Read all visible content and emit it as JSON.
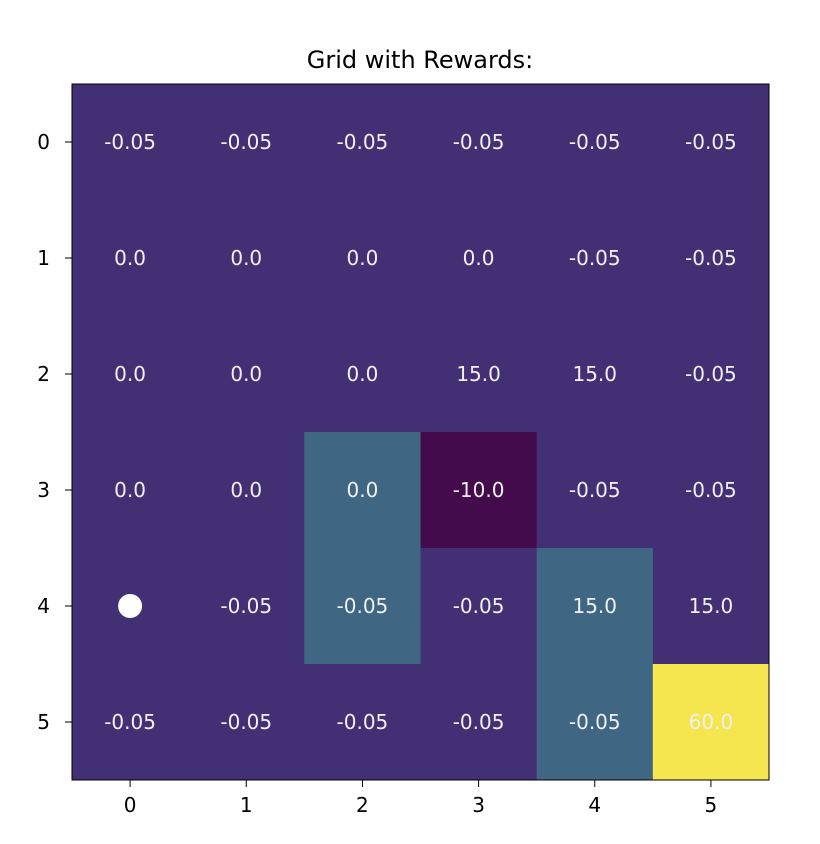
{
  "chart_data": {
    "type": "heatmap",
    "title": "Grid with Rewards:",
    "xlabel": "",
    "ylabel": "",
    "x_ticks": [
      "0",
      "1",
      "2",
      "3",
      "4",
      "5"
    ],
    "y_ticks": [
      "0",
      "1",
      "2",
      "3",
      "4",
      "5"
    ],
    "grid": false,
    "values": [
      [
        -0.05,
        -0.05,
        -0.05,
        -0.05,
        -0.05,
        -0.05
      ],
      [
        0.0,
        0.0,
        0.0,
        0.0,
        -0.05,
        -0.05
      ],
      [
        0.0,
        0.0,
        0.0,
        15.0,
        15.0,
        -0.05
      ],
      [
        0.0,
        0.0,
        0.0,
        -10.0,
        -0.05,
        -0.05
      ],
      [
        null,
        -0.05,
        -0.05,
        -0.05,
        15.0,
        15.0
      ],
      [
        -0.05,
        -0.05,
        -0.05,
        -0.05,
        -0.05,
        60.0
      ]
    ],
    "labels": [
      [
        "-0.05",
        "-0.05",
        "-0.05",
        "-0.05",
        "-0.05",
        "-0.05"
      ],
      [
        "0.0",
        "0.0",
        "0.0",
        "0.0",
        "-0.05",
        "-0.05"
      ],
      [
        "0.0",
        "0.0",
        "0.0",
        "15.0",
        "15.0",
        "-0.05"
      ],
      [
        "0.0",
        "0.0",
        "0.0",
        "-10.0",
        "-0.05",
        "-0.05"
      ],
      [
        "",
        "-0.05",
        "-0.05",
        "-0.05",
        "15.0",
        "15.0"
      ],
      [
        "-0.05",
        "-0.05",
        "-0.05",
        "-0.05",
        "-0.05",
        "60.0"
      ]
    ],
    "cell_colors": [
      [
        "#433074",
        "#433074",
        "#433074",
        "#433074",
        "#433074",
        "#433074"
      ],
      [
        "#433074",
        "#433074",
        "#433074",
        "#433074",
        "#433074",
        "#433074"
      ],
      [
        "#433074",
        "#433074",
        "#433074",
        "#433074",
        "#433074",
        "#433074"
      ],
      [
        "#433074",
        "#433074",
        "#3f6784",
        "#440b4c",
        "#433074",
        "#433074"
      ],
      [
        "#433074",
        "#433074",
        "#3f6784",
        "#433074",
        "#3f6784",
        "#433074"
      ],
      [
        "#433074",
        "#433074",
        "#433074",
        "#433074",
        "#3f6784",
        "#f5e54f"
      ]
    ],
    "agent_marker": {
      "row": 4,
      "col": 0,
      "color": "#ffffff"
    },
    "text_color": "#f0f0f0",
    "colormap": "viridis"
  }
}
